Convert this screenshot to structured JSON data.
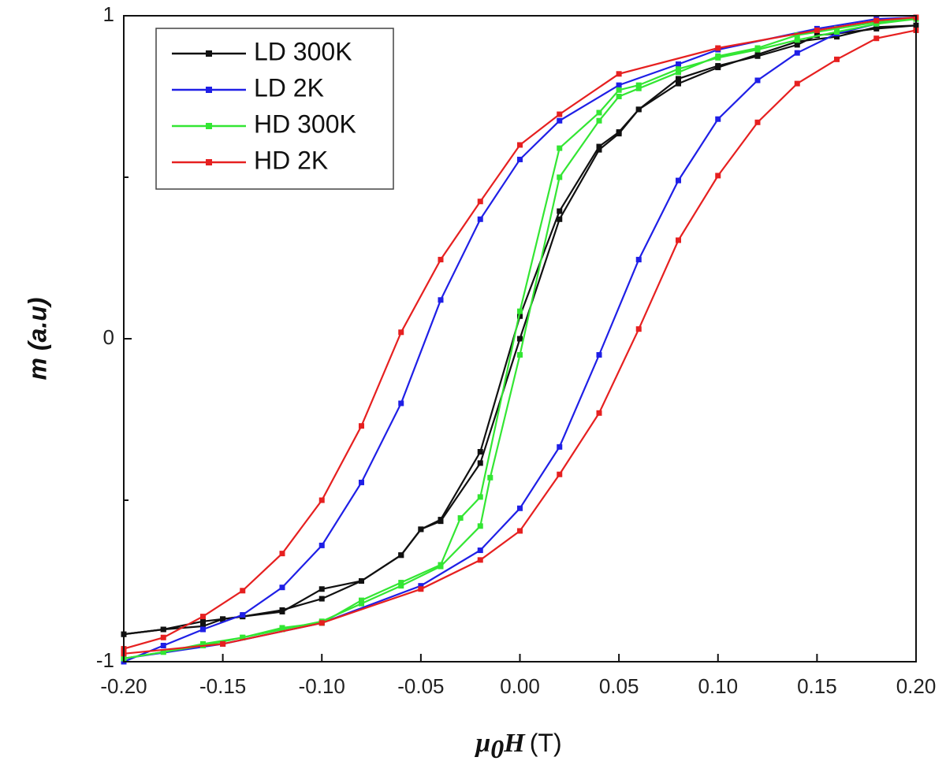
{
  "chart_data": {
    "type": "line",
    "title": "",
    "xlabel": {
      "main": "μ",
      "sub": "0",
      "main2": "H",
      "unit": "(T)"
    },
    "ylabel": "m (a.u)",
    "xlim": [
      -0.2,
      0.2
    ],
    "ylim": [
      -1,
      1
    ],
    "x_ticks": [
      -0.2,
      -0.15,
      -0.1,
      -0.05,
      0.0,
      0.05,
      0.1,
      0.15,
      0.2
    ],
    "x_tick_labels": [
      "-0.20",
      "-0.15",
      "-0.10",
      "-0.05",
      "0.00",
      "0.05",
      "0.10",
      "0.15",
      "0.20"
    ],
    "y_ticks": [
      -1,
      0,
      1
    ],
    "y_tick_labels": [
      "-1",
      "0",
      "1"
    ],
    "y_minor_ticks": [
      -0.5,
      0.5
    ],
    "grid": false,
    "legend_position": "top-left",
    "series": [
      {
        "name": "LD 300K",
        "color": "#111111",
        "points": [
          [
            -0.2,
            -0.915
          ],
          [
            -0.18,
            -0.9
          ],
          [
            -0.16,
            -0.875
          ],
          [
            -0.15,
            -0.868
          ],
          [
            -0.14,
            -0.86
          ],
          [
            -0.12,
            -0.84
          ],
          [
            -0.1,
            -0.805
          ],
          [
            -0.08,
            -0.75
          ],
          [
            -0.06,
            -0.67
          ],
          [
            -0.05,
            -0.59
          ],
          [
            -0.04,
            -0.56
          ],
          [
            -0.02,
            -0.35
          ],
          [
            0.0,
            0.07
          ],
          [
            0.02,
            0.395
          ],
          [
            0.04,
            0.595
          ],
          [
            0.05,
            0.64
          ],
          [
            0.06,
            0.71
          ],
          [
            0.08,
            0.805
          ],
          [
            0.1,
            0.845
          ],
          [
            0.12,
            0.875
          ],
          [
            0.14,
            0.91
          ],
          [
            0.15,
            0.94
          ],
          [
            0.16,
            0.945
          ],
          [
            0.18,
            0.96
          ],
          [
            0.2,
            0.97
          ]
        ],
        "points_return": [
          [
            0.2,
            0.97
          ],
          [
            0.18,
            0.965
          ],
          [
            0.16,
            0.935
          ],
          [
            0.14,
            0.92
          ],
          [
            0.12,
            0.88
          ],
          [
            0.1,
            0.84
          ],
          [
            0.08,
            0.79
          ],
          [
            0.06,
            0.71
          ],
          [
            0.05,
            0.635
          ],
          [
            0.04,
            0.585
          ],
          [
            0.02,
            0.37
          ],
          [
            0.0,
            0.0
          ],
          [
            -0.02,
            -0.385
          ],
          [
            -0.04,
            -0.565
          ],
          [
            -0.05,
            -0.59
          ],
          [
            -0.06,
            -0.67
          ],
          [
            -0.08,
            -0.75
          ],
          [
            -0.1,
            -0.775
          ],
          [
            -0.12,
            -0.845
          ],
          [
            -0.14,
            -0.86
          ],
          [
            -0.15,
            -0.868
          ],
          [
            -0.16,
            -0.89
          ],
          [
            -0.18,
            -0.9
          ],
          [
            -0.2,
            -0.915
          ]
        ]
      },
      {
        "name": "LD 2K",
        "color": "#1f1fe6",
        "points": [
          [
            -0.2,
            -1.0
          ],
          [
            -0.18,
            -0.95
          ],
          [
            -0.16,
            -0.9
          ],
          [
            -0.14,
            -0.855
          ],
          [
            -0.12,
            -0.77
          ],
          [
            -0.1,
            -0.64
          ],
          [
            -0.08,
            -0.445
          ],
          [
            -0.06,
            -0.2
          ],
          [
            -0.04,
            0.12
          ],
          [
            -0.02,
            0.37
          ],
          [
            0.0,
            0.555
          ],
          [
            0.02,
            0.675
          ],
          [
            0.05,
            0.785
          ],
          [
            0.08,
            0.85
          ],
          [
            0.1,
            0.895
          ],
          [
            0.15,
            0.96
          ],
          [
            0.18,
            0.99
          ],
          [
            0.2,
            0.995
          ]
        ],
        "points_return": [
          [
            0.2,
            0.995
          ],
          [
            0.18,
            0.975
          ],
          [
            0.16,
            0.945
          ],
          [
            0.14,
            0.885
          ],
          [
            0.12,
            0.8
          ],
          [
            0.1,
            0.68
          ],
          [
            0.08,
            0.49
          ],
          [
            0.06,
            0.245
          ],
          [
            0.04,
            -0.05
          ],
          [
            0.02,
            -0.335
          ],
          [
            0.0,
            -0.525
          ],
          [
            -0.02,
            -0.655
          ],
          [
            -0.05,
            -0.765
          ],
          [
            -0.1,
            -0.88
          ],
          [
            -0.15,
            -0.945
          ],
          [
            -0.2,
            -0.99
          ]
        ]
      },
      {
        "name": "HD 300K",
        "color": "#33e633",
        "points": [
          [
            -0.2,
            -0.99
          ],
          [
            -0.18,
            -0.97
          ],
          [
            -0.16,
            -0.95
          ],
          [
            -0.14,
            -0.925
          ],
          [
            -0.12,
            -0.9
          ],
          [
            -0.1,
            -0.875
          ],
          [
            -0.08,
            -0.82
          ],
          [
            -0.06,
            -0.765
          ],
          [
            -0.04,
            -0.705
          ],
          [
            -0.02,
            -0.58
          ],
          [
            -0.015,
            -0.43
          ],
          [
            0.0,
            -0.05
          ],
          [
            0.02,
            0.5
          ],
          [
            0.04,
            0.675
          ],
          [
            0.05,
            0.75
          ],
          [
            0.06,
            0.775
          ],
          [
            0.08,
            0.825
          ],
          [
            0.1,
            0.875
          ],
          [
            0.12,
            0.9
          ],
          [
            0.14,
            0.94
          ],
          [
            0.16,
            0.96
          ],
          [
            0.18,
            0.98
          ],
          [
            0.2,
            0.99
          ]
        ],
        "points_return": [
          [
            0.2,
            0.99
          ],
          [
            0.18,
            0.975
          ],
          [
            0.16,
            0.95
          ],
          [
            0.14,
            0.925
          ],
          [
            0.12,
            0.895
          ],
          [
            0.1,
            0.87
          ],
          [
            0.08,
            0.835
          ],
          [
            0.06,
            0.785
          ],
          [
            0.05,
            0.77
          ],
          [
            0.04,
            0.7
          ],
          [
            0.02,
            0.59
          ],
          [
            0.0,
            0.085
          ],
          [
            -0.02,
            -0.49
          ],
          [
            -0.03,
            -0.555
          ],
          [
            -0.04,
            -0.7
          ],
          [
            -0.06,
            -0.755
          ],
          [
            -0.08,
            -0.81
          ],
          [
            -0.1,
            -0.88
          ],
          [
            -0.12,
            -0.895
          ],
          [
            -0.14,
            -0.925
          ],
          [
            -0.16,
            -0.945
          ],
          [
            -0.18,
            -0.97
          ],
          [
            -0.2,
            -0.99
          ]
        ]
      },
      {
        "name": "HD 2K",
        "color": "#e62020",
        "points": [
          [
            -0.2,
            -0.96
          ],
          [
            -0.18,
            -0.925
          ],
          [
            -0.16,
            -0.86
          ],
          [
            -0.14,
            -0.78
          ],
          [
            -0.12,
            -0.665
          ],
          [
            -0.1,
            -0.5
          ],
          [
            -0.08,
            -0.27
          ],
          [
            -0.06,
            0.02
          ],
          [
            -0.04,
            0.245
          ],
          [
            -0.02,
            0.425
          ],
          [
            0.0,
            0.6
          ],
          [
            0.02,
            0.695
          ],
          [
            0.05,
            0.82
          ],
          [
            0.1,
            0.9
          ],
          [
            0.15,
            0.955
          ],
          [
            0.18,
            0.985
          ],
          [
            0.2,
            0.995
          ]
        ],
        "points_return": [
          [
            0.2,
            0.955
          ],
          [
            0.18,
            0.93
          ],
          [
            0.16,
            0.865
          ],
          [
            0.14,
            0.79
          ],
          [
            0.12,
            0.67
          ],
          [
            0.1,
            0.505
          ],
          [
            0.08,
            0.305
          ],
          [
            0.06,
            0.03
          ],
          [
            0.04,
            -0.23
          ],
          [
            0.02,
            -0.42
          ],
          [
            0.0,
            -0.595
          ],
          [
            -0.02,
            -0.685
          ],
          [
            -0.05,
            -0.775
          ],
          [
            -0.1,
            -0.88
          ],
          [
            -0.15,
            -0.945
          ],
          [
            -0.2,
            -0.975
          ]
        ]
      }
    ]
  }
}
